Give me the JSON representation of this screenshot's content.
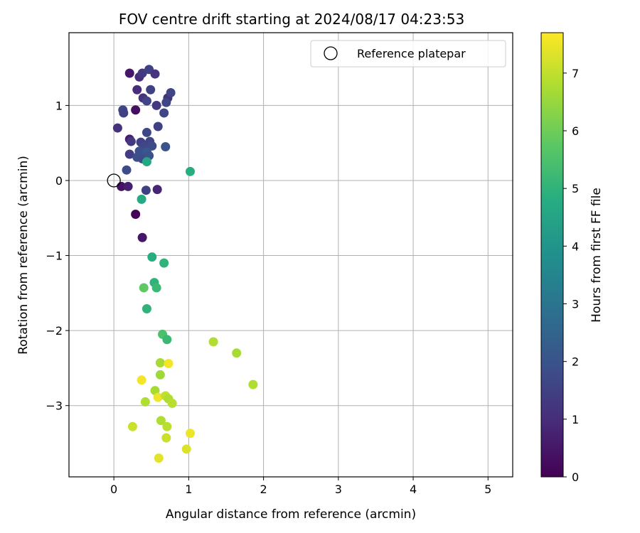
{
  "chart_data": {
    "type": "scatter",
    "title": "FOV centre drift starting at 2024/08/17 04:23:53",
    "xlabel": "Angular distance from reference (arcmin)",
    "ylabel": "Rotation from reference (arcmin)",
    "xlim": [
      -0.6,
      5.33
    ],
    "ylim": [
      -3.95,
      1.97
    ],
    "xticks": [
      0,
      1,
      2,
      3,
      4,
      5
    ],
    "yticks": [
      -3,
      -2,
      -1,
      0,
      1
    ],
    "grid": true,
    "legend": {
      "position": "top-right",
      "entries": [
        "Reference platepar"
      ]
    },
    "reference_point": {
      "x": 0,
      "y": 0
    },
    "colorbar": {
      "label": "Hours from first FF file",
      "colormap": "viridis",
      "range": [
        0,
        7.7
      ],
      "ticks": [
        0,
        1,
        2,
        3,
        4,
        5,
        6,
        7
      ]
    },
    "points": [
      {
        "x": 0.21,
        "y": 1.43,
        "c": 0.5
      },
      {
        "x": 0.34,
        "y": 1.38,
        "c": 1.0
      },
      {
        "x": 0.38,
        "y": 1.43,
        "c": 1.3
      },
      {
        "x": 0.47,
        "y": 1.48,
        "c": 1.5
      },
      {
        "x": 0.55,
        "y": 1.42,
        "c": 1.2
      },
      {
        "x": 0.31,
        "y": 1.21,
        "c": 1.0
      },
      {
        "x": 0.49,
        "y": 1.21,
        "c": 1.5
      },
      {
        "x": 0.39,
        "y": 1.1,
        "c": 1.2
      },
      {
        "x": 0.44,
        "y": 1.06,
        "c": 1.6
      },
      {
        "x": 0.72,
        "y": 1.1,
        "c": 1.1
      },
      {
        "x": 0.76,
        "y": 1.17,
        "c": 1.6
      },
      {
        "x": 0.7,
        "y": 1.04,
        "c": 1.6
      },
      {
        "x": 0.57,
        "y": 1.0,
        "c": 1.3
      },
      {
        "x": 0.12,
        "y": 0.94,
        "c": 1.7
      },
      {
        "x": 0.13,
        "y": 0.9,
        "c": 1.5
      },
      {
        "x": 0.29,
        "y": 0.94,
        "c": 0.3
      },
      {
        "x": 0.67,
        "y": 0.9,
        "c": 1.6
      },
      {
        "x": 0.05,
        "y": 0.7,
        "c": 1.1
      },
      {
        "x": 0.59,
        "y": 0.72,
        "c": 1.5
      },
      {
        "x": 0.44,
        "y": 0.64,
        "c": 1.7
      },
      {
        "x": 0.21,
        "y": 0.55,
        "c": 0.6
      },
      {
        "x": 0.23,
        "y": 0.52,
        "c": 1.3
      },
      {
        "x": 0.36,
        "y": 0.51,
        "c": 1.5
      },
      {
        "x": 0.48,
        "y": 0.52,
        "c": 1.6
      },
      {
        "x": 0.4,
        "y": 0.45,
        "c": 1.7
      },
      {
        "x": 0.51,
        "y": 0.46,
        "c": 1.8
      },
      {
        "x": 0.69,
        "y": 0.45,
        "c": 2.0
      },
      {
        "x": 0.34,
        "y": 0.39,
        "c": 1.9
      },
      {
        "x": 0.44,
        "y": 0.38,
        "c": 2.1
      },
      {
        "x": 0.21,
        "y": 0.35,
        "c": 1.4
      },
      {
        "x": 0.31,
        "y": 0.31,
        "c": 1.9
      },
      {
        "x": 0.38,
        "y": 0.29,
        "c": 1.8
      },
      {
        "x": 0.47,
        "y": 0.33,
        "c": 2.0
      },
      {
        "x": 0.44,
        "y": 0.25,
        "c": 4.6
      },
      {
        "x": 0.17,
        "y": 0.14,
        "c": 1.8
      },
      {
        "x": 1.02,
        "y": 0.12,
        "c": 4.8
      },
      {
        "x": 0.1,
        "y": -0.08,
        "c": 0.4
      },
      {
        "x": 0.19,
        "y": -0.08,
        "c": 0.7
      },
      {
        "x": 0.43,
        "y": -0.13,
        "c": 1.5
      },
      {
        "x": 0.58,
        "y": -0.12,
        "c": 0.8
      },
      {
        "x": 0.37,
        "y": -0.25,
        "c": 4.7
      },
      {
        "x": 0.29,
        "y": -0.45,
        "c": 0.1
      },
      {
        "x": 0.38,
        "y": -0.76,
        "c": 0.5
      },
      {
        "x": 0.51,
        "y": -1.02,
        "c": 4.8
      },
      {
        "x": 0.67,
        "y": -1.1,
        "c": 5.0
      },
      {
        "x": 0.54,
        "y": -1.36,
        "c": 5.0
      },
      {
        "x": 0.57,
        "y": -1.43,
        "c": 5.2
      },
      {
        "x": 0.4,
        "y": -1.43,
        "c": 5.8
      },
      {
        "x": 0.44,
        "y": -1.71,
        "c": 5.0
      },
      {
        "x": 0.65,
        "y": -2.05,
        "c": 5.5
      },
      {
        "x": 0.71,
        "y": -2.12,
        "c": 5.2
      },
      {
        "x": 1.33,
        "y": -2.15,
        "c": 6.8
      },
      {
        "x": 1.64,
        "y": -2.3,
        "c": 6.7
      },
      {
        "x": 0.62,
        "y": -2.43,
        "c": 6.7
      },
      {
        "x": 0.73,
        "y": -2.44,
        "c": 7.6
      },
      {
        "x": 1.86,
        "y": -2.72,
        "c": 6.8
      },
      {
        "x": 0.37,
        "y": -2.66,
        "c": 7.6
      },
      {
        "x": 0.62,
        "y": -2.59,
        "c": 6.6
      },
      {
        "x": 0.55,
        "y": -2.8,
        "c": 6.7
      },
      {
        "x": 0.59,
        "y": -2.89,
        "c": 7.5
      },
      {
        "x": 0.69,
        "y": -2.87,
        "c": 7.0
      },
      {
        "x": 0.73,
        "y": -2.91,
        "c": 6.8
      },
      {
        "x": 0.78,
        "y": -2.97,
        "c": 6.9
      },
      {
        "x": 0.42,
        "y": -2.95,
        "c": 6.8
      },
      {
        "x": 0.63,
        "y": -3.2,
        "c": 6.8
      },
      {
        "x": 0.71,
        "y": -3.28,
        "c": 6.9
      },
      {
        "x": 0.25,
        "y": -3.28,
        "c": 7.1
      },
      {
        "x": 1.02,
        "y": -3.37,
        "c": 7.5
      },
      {
        "x": 0.7,
        "y": -3.43,
        "c": 7.1
      },
      {
        "x": 0.97,
        "y": -3.58,
        "c": 7.3
      },
      {
        "x": 0.6,
        "y": -3.7,
        "c": 7.4
      }
    ]
  }
}
